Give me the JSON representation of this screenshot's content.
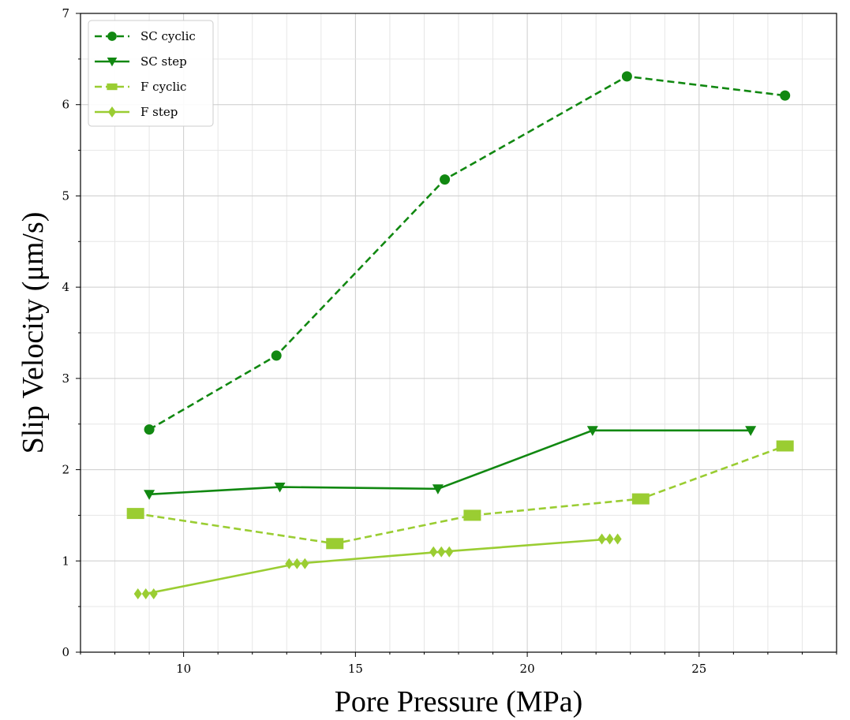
{
  "chart_data": {
    "type": "line",
    "xlabel": "Pore Pressure (MPa)",
    "ylabel": "Slip Velocity (μm/s)",
    "xlim": [
      7,
      29
    ],
    "ylim": [
      0,
      7
    ],
    "xticks": [
      10,
      15,
      20,
      25
    ],
    "yticks": [
      0,
      1,
      2,
      3,
      4,
      5,
      6,
      7
    ],
    "grid": true,
    "legend_position": "top-left",
    "series": [
      {
        "name": "SC cyclic",
        "color": "#118811",
        "linestyle": "dashed",
        "marker": "circle",
        "points": [
          [
            9,
            2.44
          ],
          [
            12.7,
            3.25
          ],
          [
            17.6,
            5.18
          ],
          [
            22.9,
            6.31
          ],
          [
            27.5,
            6.1
          ]
        ]
      },
      {
        "name": "SC step",
        "color": "#118811",
        "linestyle": "solid",
        "marker": "triangle-down",
        "points": [
          [
            9,
            1.73
          ],
          [
            12.8,
            1.81
          ],
          [
            17.4,
            1.79
          ],
          [
            21.9,
            2.43
          ],
          [
            26.5,
            2.43
          ]
        ]
      },
      {
        "name": "F cyclic",
        "color": "#9acd32",
        "linestyle": "dashed",
        "marker": "square",
        "points": [
          [
            8.6,
            1.52
          ],
          [
            14.4,
            1.19
          ],
          [
            18.4,
            1.5
          ],
          [
            23.3,
            1.68
          ],
          [
            27.5,
            2.26
          ]
        ]
      },
      {
        "name": "F step",
        "color": "#9acd32",
        "linestyle": "solid",
        "marker": "diamond",
        "points": [
          [
            8.9,
            0.64
          ],
          [
            13.3,
            0.97
          ],
          [
            17.5,
            1.1
          ],
          [
            22.4,
            1.24
          ]
        ]
      }
    ]
  }
}
